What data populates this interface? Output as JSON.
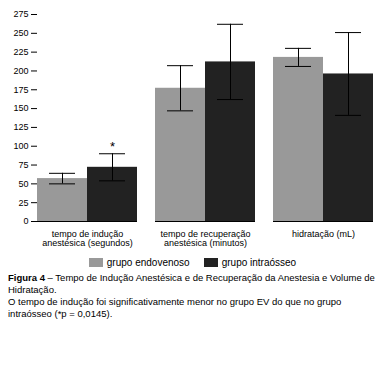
{
  "chart_data": {
    "type": "bar",
    "categories": [
      "tempo de indução\nanestésica (segundos)",
      "tempo de recuperação\nanestésica (minutos)",
      "hidratação (mL)"
    ],
    "series": [
      {
        "name": "grupo endovenoso",
        "color": "#999999",
        "values": [
          57,
          177,
          218
        ],
        "errors": [
          7,
          30,
          12
        ]
      },
      {
        "name": "grupo intraósseo",
        "color": "#222222",
        "values": [
          72,
          212,
          196
        ],
        "errors": [
          18,
          50,
          55
        ]
      }
    ],
    "ylim": [
      0,
      275
    ],
    "yticks": [
      0,
      25,
      50,
      75,
      100,
      125,
      150,
      175,
      200,
      225,
      250,
      275
    ],
    "grid": false,
    "legend": "bottom",
    "annotations": [
      {
        "text": "*",
        "category": "tempo de indução\nanestésica (segundos)",
        "series": "grupo intraósseo"
      }
    ],
    "caption": {
      "title": "Figura 4",
      "text": " – Tempo de Indução Anestésica e de Recuperação da Anestesia e Volume de Hidratação.\nO tempo de indução foi significativamente menor no grupo EV do que no grupo intraósseo (*p = 0,0145)."
    }
  }
}
